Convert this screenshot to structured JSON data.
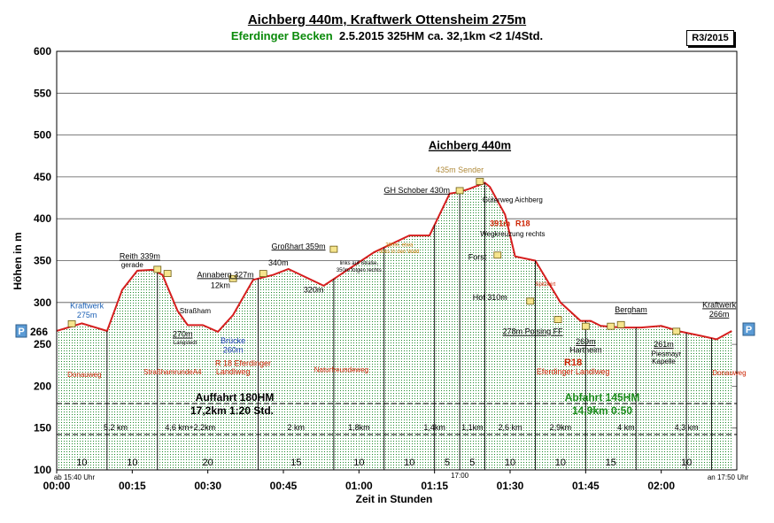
{
  "title": "Aichberg 440m, Kraftwerk Ottensheim 275m",
  "subtitle": {
    "region": "Eferdinger Becken",
    "details": "2.5.2015    325HM   ca. 32,1km    <2 1/4Std."
  },
  "badge": "R3/2015",
  "chart_data": {
    "type": "area",
    "xlabel": "Zeit in Stunden",
    "ylabel": "Höhen in m",
    "xlim": [
      0,
      135
    ],
    "ylim": [
      100,
      600
    ],
    "y_ticks": [
      100,
      150,
      200,
      250,
      300,
      350,
      400,
      450,
      500,
      550,
      600
    ],
    "x_ticks": [
      {
        "t": 0,
        "label": "00:00"
      },
      {
        "t": 15,
        "label": "00:15"
      },
      {
        "t": 30,
        "label": "00:30"
      },
      {
        "t": 45,
        "label": "00:45"
      },
      {
        "t": 60,
        "label": "01:00"
      },
      {
        "t": 75,
        "label": "01:15"
      },
      {
        "t": 90,
        "label": "01:30"
      },
      {
        "t": 105,
        "label": "01:45"
      },
      {
        "t": 120,
        "label": "02:00"
      }
    ],
    "grid": "horizontal",
    "series": [
      {
        "x": [
          0,
          5,
          10,
          13,
          16,
          19,
          21,
          24,
          26,
          29,
          32,
          35,
          39,
          43,
          46,
          53,
          63,
          70,
          74,
          78,
          80,
          82,
          85,
          86,
          89,
          91,
          95,
          100,
          104,
          106,
          108,
          112,
          116,
          120,
          124,
          128,
          131,
          134
        ],
        "y": [
          266,
          275,
          266,
          315,
          338,
          339,
          333,
          290,
          273,
          273,
          265,
          285,
          327,
          333,
          340,
          320,
          360,
          380,
          380,
          430,
          432,
          436,
          443,
          438,
          405,
          355,
          350,
          300,
          278,
          278,
          272,
          270,
          270,
          272,
          265,
          260,
          256,
          266
        ]
      }
    ],
    "left_marker": {
      "label": "P",
      "value": "266"
    },
    "right_marker": {
      "label": "P"
    },
    "dividers": [
      10,
      20,
      40,
      55,
      65,
      75,
      80,
      85,
      95,
      105,
      115,
      125,
      130
    ],
    "segment_minutes": [
      {
        "x": 5,
        "label": "10"
      },
      {
        "x": 15,
        "label": "10"
      },
      {
        "x": 30,
        "label": "20"
      },
      {
        "x": 47.5,
        "label": "15"
      },
      {
        "x": 60,
        "label": "10"
      },
      {
        "x": 70,
        "label": "10"
      },
      {
        "x": 77.5,
        "label": "5"
      },
      {
        "x": 82.5,
        "label": "5"
      },
      {
        "x": 90,
        "label": "10"
      },
      {
        "x": 100,
        "label": "10"
      },
      {
        "x": 110,
        "label": "15"
      },
      {
        "x": 125,
        "label": "10"
      }
    ],
    "segment_km": [
      {
        "x": 11.7,
        "label": "5,2 km"
      },
      {
        "x": 26.5,
        "label": "4,6 km+2,2km"
      },
      {
        "x": 47.5,
        "label": "2 km"
      },
      {
        "x": 60,
        "label": "1,8km"
      },
      {
        "x": 75,
        "label": "1,4km"
      },
      {
        "x": 82.5,
        "label": "1,1km"
      },
      {
        "x": 90,
        "label": "2,6 km"
      },
      {
        "x": 100,
        "label": "2,9km"
      },
      {
        "x": 113,
        "label": "4 km"
      },
      {
        "x": 125,
        "label": "4,3 km"
      }
    ],
    "auffahrt": {
      "title": "Auffahrt  180HM",
      "sub": "17,2km   1:20 Std."
    },
    "abfahrt": {
      "title": "Abfahrt  145HM",
      "sub": "14,9km   0:50"
    },
    "time_start": "ab 15:40 Uhr",
    "time_mid": "17:00",
    "time_end": "an 17:50 Uhr",
    "annotations": [
      {
        "text": "Kraftwerk",
        "x": 6,
        "y": 293,
        "color": "#1a5fb4",
        "size": 9
      },
      {
        "text": "275m",
        "x": 6,
        "y": 282,
        "color": "#1a5fb4",
        "size": 9
      },
      {
        "text": "Reith 339m",
        "x": 16.5,
        "y": 352,
        "color": "#000",
        "size": 9,
        "ul": true
      },
      {
        "text": "gerade",
        "x": 15,
        "y": 342,
        "color": "#000",
        "size": 8
      },
      {
        "text": "Annaberg 327m",
        "x": 33.5,
        "y": 330,
        "color": "#000",
        "size": 9,
        "ul": true
      },
      {
        "text": "12km",
        "x": 32.5,
        "y": 317,
        "color": "#000",
        "size": 9
      },
      {
        "text": "Straßham",
        "x": 27.5,
        "y": 287,
        "color": "#000",
        "size": 8
      },
      {
        "text": "270m",
        "x": 25,
        "y": 259,
        "color": "#000",
        "size": 9,
        "ul": true
      },
      {
        "text": "Langstedt",
        "x": 25.5,
        "y": 250,
        "color": "#000",
        "size": 6
      },
      {
        "text": "Brücke",
        "x": 35,
        "y": 251,
        "color": "#1a3fb4",
        "size": 9
      },
      {
        "text": "260m",
        "x": 35,
        "y": 240,
        "color": "#1a3fb4",
        "size": 9
      },
      {
        "text": "R 18 Eferdinger",
        "x": 37,
        "y": 224,
        "color": "#cc2200",
        "size": 9
      },
      {
        "text": "Landlweg",
        "x": 35,
        "y": 214,
        "color": "#cc2200",
        "size": 9
      },
      {
        "text": "Großhart 359m",
        "x": 48,
        "y": 364,
        "color": "#000",
        "size": 9,
        "ul": true
      },
      {
        "text": "340m",
        "x": 44,
        "y": 344,
        "color": "#000",
        "size": 9
      },
      {
        "text": "320m",
        "x": 51,
        "y": 312,
        "color": "#000",
        "size": 9
      },
      {
        "text": "links auf Straße,",
        "x": 60,
        "y": 345,
        "color": "#000",
        "size": 6
      },
      {
        "text": "350m folgen rechts",
        "x": 60,
        "y": 337,
        "color": "#000",
        "size": 6
      },
      {
        "text": "380m, etwa",
        "x": 68,
        "y": 367,
        "color": "#c27a00",
        "size": 6
      },
      {
        "text": "links in den Wald",
        "x": 68,
        "y": 359,
        "color": "#c27a00",
        "size": 6
      },
      {
        "text": "GH Schober 430m",
        "x": 71.5,
        "y": 431,
        "color": "#000",
        "size": 9,
        "ul": true
      },
      {
        "text": "435m Sender",
        "x": 80,
        "y": 455,
        "color": "#b08a3a",
        "size": 9
      },
      {
        "text": "Aichberg 440m",
        "x": 82,
        "y": 483,
        "color": "#000",
        "size": 13,
        "ul": true,
        "bold": true
      },
      {
        "text": "Güterweg Aichberg",
        "x": 90.5,
        "y": 420,
        "color": "#000",
        "size": 8
      },
      {
        "text": "391m",
        "x": 88,
        "y": 391,
        "color": "#cc2200",
        "size": 9,
        "bold": true
      },
      {
        "text": "R18",
        "x": 92.5,
        "y": 391,
        "color": "#cc2200",
        "size": 9,
        "bold": true
      },
      {
        "text": "Wegkreuzung rechts",
        "x": 90.5,
        "y": 379,
        "color": "#000",
        "size": 8
      },
      {
        "text": "Forst",
        "x": 83.5,
        "y": 351,
        "color": "#000",
        "size": 9
      },
      {
        "text": "Spitzwirt",
        "x": 97,
        "y": 320,
        "color": "#cc2200",
        "size": 6
      },
      {
        "text": "Hof 310m",
        "x": 86,
        "y": 303,
        "color": "#000",
        "size": 9
      },
      {
        "text": "278m Polsing FF",
        "x": 94.5,
        "y": 262,
        "color": "#000",
        "size": 9,
        "ul": true
      },
      {
        "text": "R18",
        "x": 102.5,
        "y": 225,
        "color": "#cc2200",
        "size": 11,
        "bold": true
      },
      {
        "text": "Eferdinger Landlweg",
        "x": 102.5,
        "y": 214,
        "color": "#cc2200",
        "size": 9
      },
      {
        "text": "269m",
        "x": 105,
        "y": 250,
        "color": "#000",
        "size": 9,
        "ul": true
      },
      {
        "text": "Hartheim",
        "x": 105,
        "y": 240,
        "color": "#000",
        "size": 9
      },
      {
        "text": "Bergham",
        "x": 114,
        "y": 288,
        "color": "#000",
        "size": 9,
        "ul": true
      },
      {
        "text": "261m",
        "x": 120.5,
        "y": 247,
        "color": "#000",
        "size": 9,
        "ul": true
      },
      {
        "text": "Piesmayr",
        "x": 121,
        "y": 236,
        "color": "#000",
        "size": 8
      },
      {
        "text": "Kapelle",
        "x": 120.5,
        "y": 227,
        "color": "#000",
        "size": 8
      },
      {
        "text": "Kraftwerk",
        "x": 131.5,
        "y": 294,
        "color": "#000",
        "size": 9,
        "ul": true
      },
      {
        "text": "266m",
        "x": 131.5,
        "y": 283,
        "color": "#000",
        "size": 9,
        "ul": true
      },
      {
        "text": "Donauweg",
        "x": 5.5,
        "y": 211,
        "color": "#cc2200",
        "size": 8
      },
      {
        "text": "StraßhamrundeA4",
        "x": 23,
        "y": 214,
        "color": "#cc2200",
        "size": 8
      },
      {
        "text": "Naturfreundeweg",
        "x": 56.5,
        "y": 217,
        "color": "#cc2200",
        "size": 8
      },
      {
        "text": "Donauweg",
        "x": 133.5,
        "y": 213,
        "color": "#cc2200",
        "size": 8
      }
    ]
  }
}
